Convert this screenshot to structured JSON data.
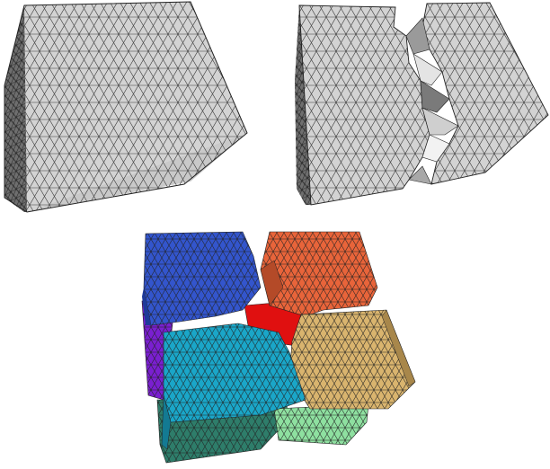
{
  "figure": {
    "panels": [
      {
        "id": "intact-cube",
        "color": "#d3d3d3"
      },
      {
        "id": "cracked-cube",
        "color": "#d3d3d3"
      },
      {
        "id": "fragmented-cube",
        "fragments": [
          {
            "id": "blue",
            "color": "#3355cc"
          },
          {
            "id": "orange",
            "color": "#e8643a"
          },
          {
            "id": "red",
            "color": "#e01010"
          },
          {
            "id": "purple",
            "color": "#7a1fd0"
          },
          {
            "id": "cyan",
            "color": "#1aa6c8"
          },
          {
            "id": "tan",
            "color": "#d9b46e"
          },
          {
            "id": "teal",
            "color": "#2e7d6a"
          },
          {
            "id": "lightgreen",
            "color": "#8ee0a0"
          }
        ]
      }
    ],
    "mesh_line_color": "#2a2a2a",
    "background": "#ffffff"
  }
}
